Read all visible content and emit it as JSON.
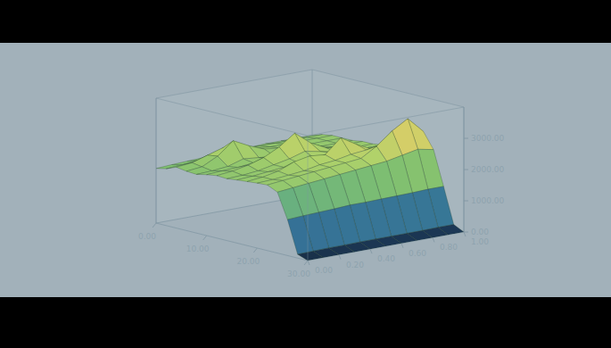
{
  "chart_data": {
    "type": "surface",
    "x": [
      0,
      2,
      4,
      6,
      8,
      10,
      12,
      14,
      16,
      18,
      20,
      22,
      24,
      26,
      28,
      30
    ],
    "y": [
      0,
      0.1,
      0.2,
      0.3,
      0.4,
      0.5,
      0.6,
      0.7,
      0.8,
      0.9,
      1.0
    ],
    "z": [
      [
        1750,
        1820,
        1950,
        1900,
        1880,
        1950,
        2000,
        1980,
        2020,
        2050,
        2080,
        2100,
        1950,
        1150,
        120,
        0
      ],
      [
        1780,
        1850,
        2000,
        1950,
        1900,
        1980,
        2050,
        2000,
        2050,
        2100,
        2100,
        2150,
        2000,
        1180,
        130,
        0
      ],
      [
        1800,
        1900,
        2150,
        2200,
        1950,
        2000,
        2150,
        2050,
        2100,
        2200,
        2150,
        2200,
        2050,
        1200,
        140,
        0
      ],
      [
        1820,
        1950,
        2300,
        2600,
        2100,
        2050,
        2300,
        2150,
        2150,
        2400,
        2200,
        2250,
        2100,
        1220,
        140,
        0
      ],
      [
        1850,
        1950,
        2200,
        2350,
        2050,
        2100,
        2550,
        2250,
        2200,
        2500,
        2300,
        2300,
        2150,
        1250,
        150,
        0
      ],
      [
        1870,
        1980,
        2100,
        2150,
        2000,
        2200,
        2900,
        2400,
        2250,
        2450,
        2350,
        2350,
        2200,
        1250,
        150,
        0
      ],
      [
        1880,
        2000,
        2050,
        2100,
        2050,
        2150,
        2500,
        2300,
        2350,
        2900,
        2450,
        2400,
        2250,
        1260,
        150,
        0
      ],
      [
        1900,
        2000,
        2050,
        2050,
        2050,
        2100,
        2250,
        2200,
        2300,
        2600,
        2500,
        2700,
        2300,
        1270,
        150,
        0
      ],
      [
        1900,
        2000,
        2050,
        2050,
        2050,
        2100,
        2150,
        2150,
        2250,
        2350,
        2600,
        3100,
        2400,
        1280,
        150,
        0
      ],
      [
        1900,
        2000,
        2050,
        2050,
        2050,
        2100,
        2100,
        2150,
        2200,
        2300,
        2700,
        3400,
        2500,
        1300,
        160,
        0
      ],
      [
        1900,
        2000,
        2050,
        2050,
        2050,
        2100,
        2100,
        2150,
        2200,
        2250,
        2500,
        2900,
        2400,
        1300,
        160,
        0
      ]
    ],
    "xlim": [
      0,
      30
    ],
    "xticks": [
      {
        "value": 0,
        "label": "0.00"
      },
      {
        "value": 10,
        "label": "10.00"
      },
      {
        "value": 20,
        "label": "20.00"
      },
      {
        "value": 30,
        "label": "30.00"
      }
    ],
    "ylim": [
      0,
      1
    ],
    "yticks": [
      {
        "value": 0,
        "label": "0.00"
      },
      {
        "value": 0.2,
        "label": "0.20"
      },
      {
        "value": 0.4,
        "label": "0.40"
      },
      {
        "value": 0.6,
        "label": "0.60"
      },
      {
        "value": 0.8,
        "label": "0.80"
      },
      {
        "value": 1,
        "label": "1.00"
      }
    ],
    "zlim": [
      0,
      4000
    ],
    "zticks": [
      {
        "value": 0,
        "label": "0.00"
      },
      {
        "value": 1000,
        "label": "1000.00"
      },
      {
        "value": 2000,
        "label": "2000.00"
      },
      {
        "value": 3000,
        "label": "3000.00"
      }
    ]
  }
}
